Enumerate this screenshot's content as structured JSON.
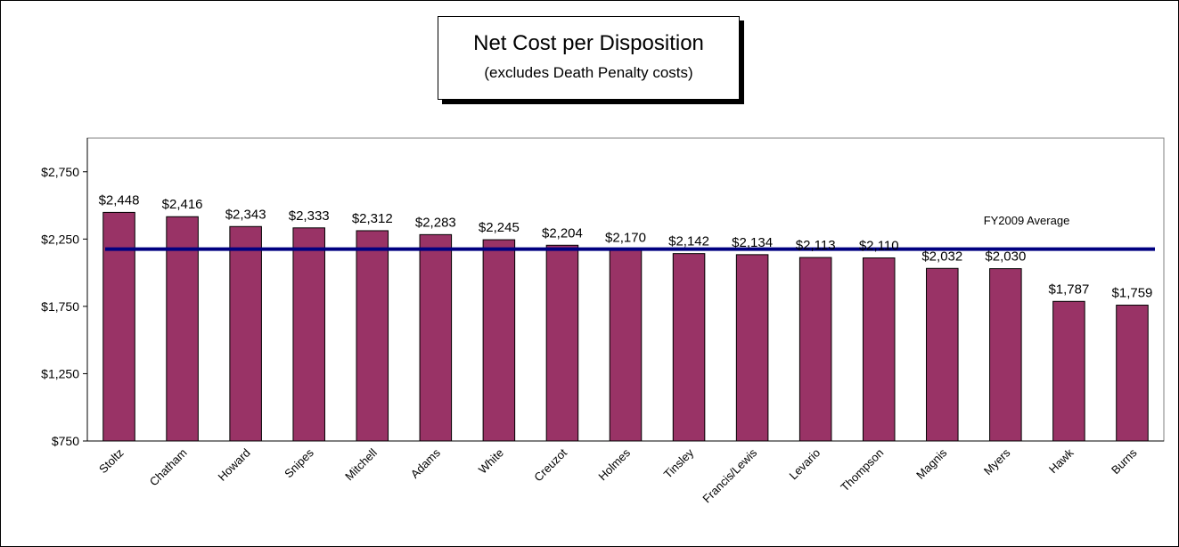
{
  "chart_data": {
    "type": "bar",
    "title": "Net Cost per Disposition",
    "subtitle": "(excludes Death Penalty costs)",
    "categories": [
      "Stoltz",
      "Chatham",
      "Howard",
      "Snipes",
      "Mitchell",
      "Adams",
      "White",
      "Creuzot",
      "Holmes",
      "Tinsley",
      "Francis/Lewis",
      "Levario",
      "Thompson",
      "Magnis",
      "Myers",
      "Hawk",
      "Burns"
    ],
    "values": [
      2448,
      2416,
      2343,
      2333,
      2312,
      2283,
      2245,
      2204,
      2170,
      2142,
      2134,
      2113,
      2110,
      2032,
      2030,
      1787,
      1759
    ],
    "value_labels": [
      "$2,448",
      "$2,416",
      "$2,343",
      "$2,333",
      "$2,312",
      "$2,283",
      "$2,245",
      "$2,204",
      "$2,170",
      "$2,142",
      "$2,134",
      "$2,113",
      "$2,110",
      "$2,032",
      "$2,030",
      "$1,787",
      "$1,759"
    ],
    "ylim": [
      750,
      3000
    ],
    "yticks": [
      750,
      1250,
      1750,
      2250,
      2750
    ],
    "ytick_labels": [
      "$750",
      "$1,250",
      "$1,750",
      "$2,250",
      "$2,750"
    ],
    "reference_line": {
      "label": "FY2009 Average",
      "value": 2175
    },
    "bar_color": "#993366",
    "line_color": "#000080",
    "grid": false,
    "legend": "none"
  }
}
